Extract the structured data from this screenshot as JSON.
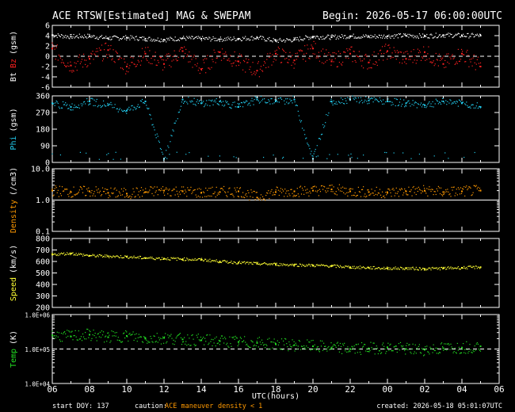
{
  "header": {
    "title": "ACE RTSW[Estimated] MAG & SWEPAM",
    "begin": "Begin: 2026-05-17 06:00:00UTC"
  },
  "footer": {
    "start_doy": "start DOY: 137",
    "caution_label": "caution:",
    "caution_maneuver": "ACE maneuver",
    "caution_density": "density < 1",
    "created": "created: 2026-05-18 05:01:07UTC"
  },
  "colors": {
    "bt": "#ffffff",
    "bz": "#ff2020",
    "phi": "#22ccee",
    "density": "#ff9900",
    "speed": "#ffff33",
    "temp": "#22dd22",
    "frame": "#ffffff"
  },
  "chart_data": [
    {
      "type": "scatter",
      "panel": "mag-bt-bz",
      "ylabel_parts": [
        {
          "text": "Bt",
          "color": "#ffffff"
        },
        {
          "text": "Bz",
          "color": "#ff2020"
        },
        {
          "text": "(gsm)",
          "color": "#ffffff"
        }
      ],
      "ylim": [
        -6,
        6
      ],
      "yticks": [
        6,
        4,
        2,
        0,
        -2,
        -4,
        -6
      ],
      "ytick_labels": [
        "6",
        "4",
        "2",
        "0",
        "-2",
        "-4",
        "-6"
      ],
      "reference_line": 0,
      "series": [
        {
          "key": "bt",
          "x": [
            0,
            1,
            2,
            3,
            4,
            5,
            6,
            7,
            8,
            9,
            10,
            11,
            12,
            13,
            14,
            15,
            16,
            17,
            18,
            19,
            20,
            21,
            22,
            23
          ],
          "values": [
            4.1,
            3.8,
            3.9,
            3.5,
            3.6,
            3.4,
            3.2,
            3.5,
            3.4,
            3.3,
            3.4,
            3.6,
            3.0,
            3.2,
            3.8,
            3.7,
            3.9,
            3.8,
            3.9,
            4.0,
            3.9,
            4.1,
            4.0,
            4.0
          ]
        },
        {
          "key": "bz",
          "x": [
            0,
            1,
            2,
            3,
            4,
            5,
            6,
            7,
            8,
            9,
            10,
            11,
            12,
            13,
            14,
            15,
            16,
            17,
            18,
            19,
            20,
            21,
            22,
            23
          ],
          "values": [
            1.5,
            -1.8,
            -0.5,
            1.2,
            -2.0,
            0.5,
            -1.5,
            1.0,
            -2.5,
            0.8,
            -1.0,
            -2.8,
            0.5,
            -0.8,
            1.5,
            -1.0,
            0.5,
            -1.2,
            1.0,
            -0.5,
            0.8,
            -1.5,
            0.5,
            -2.0
          ]
        }
      ]
    },
    {
      "type": "scatter",
      "panel": "phi",
      "ylabel_parts": [
        {
          "text": "Phi",
          "color": "#22ccee"
        },
        {
          "text": "(gsm)",
          "color": "#ffffff"
        }
      ],
      "ylim": [
        0,
        360
      ],
      "yticks": [
        360,
        270,
        180,
        90,
        0
      ],
      "ytick_labels": [
        "360",
        "270",
        "180",
        "90",
        "0"
      ],
      "series": [
        {
          "key": "phi",
          "x": [
            0,
            1,
            2,
            3,
            4,
            5,
            6,
            7,
            8,
            9,
            10,
            11,
            12,
            13,
            14,
            15,
            16,
            17,
            18,
            19,
            20,
            21,
            22,
            23
          ],
          "values": [
            320,
            300,
            330,
            310,
            280,
            330,
            20,
            340,
            320,
            330,
            300,
            340,
            330,
            340,
            20,
            330,
            340,
            335,
            330,
            320,
            310,
            330,
            320,
            300
          ]
        }
      ]
    },
    {
      "type": "scatter",
      "panel": "density",
      "ylabel_parts": [
        {
          "text": "Density",
          "color": "#ff9900"
        },
        {
          "text": "(/cm3)",
          "color": "#ffffff"
        }
      ],
      "scale": "log",
      "ylim": [
        0.1,
        10
      ],
      "yticks": [
        10,
        1,
        0.1
      ],
      "ytick_labels": [
        "10.0",
        "1.0",
        "0.1"
      ],
      "reference_line": 1,
      "series": [
        {
          "key": "density",
          "x": [
            0,
            1,
            2,
            3,
            4,
            5,
            6,
            7,
            8,
            9,
            10,
            11,
            12,
            13,
            14,
            15,
            16,
            17,
            18,
            19,
            20,
            21,
            22,
            23
          ],
          "values": [
            2.0,
            1.8,
            1.9,
            1.7,
            1.6,
            1.8,
            2.0,
            1.9,
            1.7,
            1.8,
            1.9,
            1.2,
            1.8,
            1.9,
            2.0,
            2.2,
            1.9,
            1.8,
            1.7,
            1.9,
            2.0,
            1.8,
            1.9,
            2.0
          ]
        }
      ]
    },
    {
      "type": "scatter",
      "panel": "speed",
      "ylabel_parts": [
        {
          "text": "Speed",
          "color": "#ffff33"
        },
        {
          "text": "(km/s)",
          "color": "#ffffff"
        }
      ],
      "ylim": [
        200,
        800
      ],
      "yticks": [
        800,
        700,
        600,
        500,
        400,
        300,
        200
      ],
      "ytick_labels": [
        "800",
        "700",
        "600",
        "500",
        "400",
        "300",
        "200"
      ],
      "series": [
        {
          "key": "speed",
          "x": [
            0,
            1,
            2,
            3,
            4,
            5,
            6,
            7,
            8,
            9,
            10,
            11,
            12,
            13,
            14,
            15,
            16,
            17,
            18,
            19,
            20,
            21,
            22,
            23
          ],
          "values": [
            660,
            670,
            650,
            645,
            640,
            630,
            625,
            620,
            615,
            600,
            590,
            580,
            575,
            570,
            565,
            560,
            550,
            545,
            540,
            540,
            535,
            540,
            545,
            550
          ]
        }
      ]
    },
    {
      "type": "scatter",
      "panel": "temp",
      "ylabel_parts": [
        {
          "text": "Temp",
          "color": "#22dd22"
        },
        {
          "text": "(K)",
          "color": "#ffffff"
        }
      ],
      "scale": "log",
      "ylim": [
        10000,
        1000000
      ],
      "yticks": [
        1000000,
        100000,
        10000
      ],
      "ytick_labels": [
        "1.0E+06",
        "1.0E+05",
        "1.0E+04"
      ],
      "reference_line": 100000,
      "series": [
        {
          "key": "temp",
          "x": [
            0,
            1,
            2,
            3,
            4,
            5,
            6,
            7,
            8,
            9,
            10,
            11,
            12,
            13,
            14,
            15,
            16,
            17,
            18,
            19,
            20,
            21,
            22,
            23
          ],
          "values": [
            250000,
            230000,
            260000,
            220000,
            240000,
            200000,
            210000,
            190000,
            180000,
            170000,
            160000,
            150000,
            140000,
            130000,
            120000,
            110000,
            100000,
            105000,
            110000,
            100000,
            95000,
            105000,
            110000,
            120000
          ]
        }
      ]
    }
  ],
  "x_axis": {
    "xlim": [
      0,
      24
    ],
    "ticks": [
      0,
      2,
      4,
      6,
      8,
      10,
      12,
      14,
      16,
      18,
      20,
      22,
      24
    ],
    "tick_labels": [
      "06",
      "08",
      "10",
      "12",
      "14",
      "16",
      "18",
      "20",
      "22",
      "00",
      "02",
      "04",
      "06"
    ],
    "label": "UTC(hours)"
  }
}
